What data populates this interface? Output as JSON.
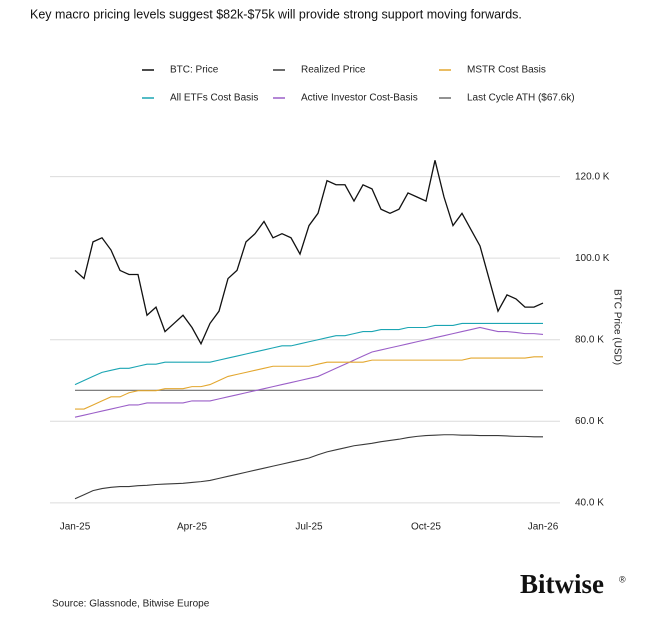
{
  "chart_data": {
    "type": "line",
    "title": "Key macro pricing levels suggest $82k-$75k will provide strong support moving forwards.",
    "source": "Source: Glassnode, Bitwise Europe",
    "brand": "Bitwise",
    "brand_mark": "®",
    "y_label": "BTC Price (USD)",
    "categories": [
      "Jan-25",
      null,
      null,
      null,
      null,
      null,
      null,
      null,
      null,
      null,
      null,
      null,
      null,
      "Apr-25",
      null,
      null,
      null,
      null,
      null,
      null,
      null,
      null,
      null,
      null,
      null,
      null,
      "Jul-25",
      null,
      null,
      null,
      null,
      null,
      null,
      null,
      null,
      null,
      null,
      null,
      null,
      "Oct-25",
      null,
      null,
      null,
      null,
      null,
      null,
      null,
      null,
      null,
      null,
      null,
      null,
      "Jan-26"
    ],
    "ylim": [
      38,
      128
    ],
    "yticks": [
      {
        "value": 40,
        "label": "40.0 K"
      },
      {
        "value": 60,
        "label": "60.0 K"
      },
      {
        "value": 80,
        "label": "80.0 K"
      },
      {
        "value": 100,
        "label": "100.0 K"
      },
      {
        "value": 120,
        "label": "120.0 K"
      }
    ],
    "grid": true,
    "series": [
      {
        "name": "BTC: Price",
        "color": "#111111",
        "values": [
          97,
          95,
          104,
          105,
          102,
          97,
          96,
          96,
          86,
          88,
          82,
          84,
          86,
          83,
          79,
          84,
          87,
          95,
          97,
          104,
          106,
          109,
          105,
          106,
          105,
          101,
          108,
          111,
          119,
          118,
          118,
          114,
          118,
          117,
          112,
          111,
          112,
          116,
          115,
          114,
          124,
          115,
          108,
          111,
          107,
          103,
          95,
          87,
          91,
          90,
          88,
          88,
          89
        ]
      },
      {
        "name": "Realized Price",
        "color": "#3a3a3a",
        "values": [
          41,
          42,
          43,
          43.5,
          43.8,
          44,
          44,
          44.2,
          44.3,
          44.5,
          44.6,
          44.7,
          44.8,
          45,
          45.2,
          45.5,
          46,
          46.5,
          47,
          47.5,
          48,
          48.5,
          49,
          49.5,
          50,
          50.5,
          51,
          51.8,
          52.5,
          53,
          53.5,
          54,
          54.3,
          54.6,
          55,
          55.3,
          55.6,
          56,
          56.3,
          56.5,
          56.6,
          56.7,
          56.7,
          56.6,
          56.6,
          56.5,
          56.5,
          56.5,
          56.4,
          56.3,
          56.3,
          56.2,
          56.2
        ]
      },
      {
        "name": "MSTR Cost Basis",
        "color": "#e3a72f",
        "values": [
          63,
          63,
          64,
          65,
          66,
          66,
          67,
          67.5,
          67.5,
          67.5,
          68,
          68,
          68,
          68.5,
          68.5,
          69,
          70,
          71,
          71.5,
          72,
          72.5,
          73,
          73.5,
          73.5,
          73.5,
          73.5,
          73.5,
          74,
          74.5,
          74.5,
          74.5,
          74.5,
          74.5,
          75,
          75,
          75,
          75,
          75,
          75,
          75,
          75,
          75,
          75,
          75,
          75.5,
          75.5,
          75.5,
          75.5,
          75.5,
          75.5,
          75.5,
          75.8,
          75.8
        ]
      },
      {
        "name": "All ETFs Cost Basis",
        "color": "#1ba5b3",
        "values": [
          69,
          70,
          71,
          72,
          72.5,
          73,
          73,
          73.5,
          74,
          74,
          74.5,
          74.5,
          74.5,
          74.5,
          74.5,
          74.5,
          75,
          75.5,
          76,
          76.5,
          77,
          77.5,
          78,
          78.5,
          78.5,
          79,
          79.5,
          80,
          80.5,
          81,
          81,
          81.5,
          82,
          82,
          82.5,
          82.5,
          82.5,
          83,
          83,
          83,
          83.5,
          83.5,
          83.5,
          84,
          84,
          84,
          84,
          84,
          84,
          84,
          84,
          84,
          84
        ]
      },
      {
        "name": "Active Investor Cost-Basis",
        "color": "#9b5fc8",
        "values": [
          61,
          61.5,
          62,
          62.5,
          63,
          63.5,
          64,
          64,
          64.5,
          64.5,
          64.5,
          64.5,
          64.5,
          65,
          65,
          65,
          65.5,
          66,
          66.5,
          67,
          67.5,
          68,
          68.5,
          69,
          69.5,
          70,
          70.5,
          71,
          72,
          73,
          74,
          75,
          76,
          77,
          77.5,
          78,
          78.5,
          79,
          79.5,
          80,
          80.5,
          81,
          81.5,
          82,
          82.5,
          83,
          82.5,
          82,
          82,
          81.8,
          81.5,
          81.5,
          81.3
        ]
      },
      {
        "name": "Last Cycle ATH ($67.6k)",
        "color": "#6e6e6e",
        "values": [
          67.6,
          67.6,
          67.6,
          67.6,
          67.6,
          67.6,
          67.6,
          67.6,
          67.6,
          67.6,
          67.6,
          67.6,
          67.6,
          67.6,
          67.6,
          67.6,
          67.6,
          67.6,
          67.6,
          67.6,
          67.6,
          67.6,
          67.6,
          67.6,
          67.6,
          67.6,
          67.6,
          67.6,
          67.6,
          67.6,
          67.6,
          67.6,
          67.6,
          67.6,
          67.6,
          67.6,
          67.6,
          67.6,
          67.6,
          67.6,
          67.6,
          67.6,
          67.6,
          67.6,
          67.6,
          67.6,
          67.6,
          67.6,
          67.6,
          67.6,
          67.6,
          67.6,
          67.6
        ]
      }
    ]
  }
}
